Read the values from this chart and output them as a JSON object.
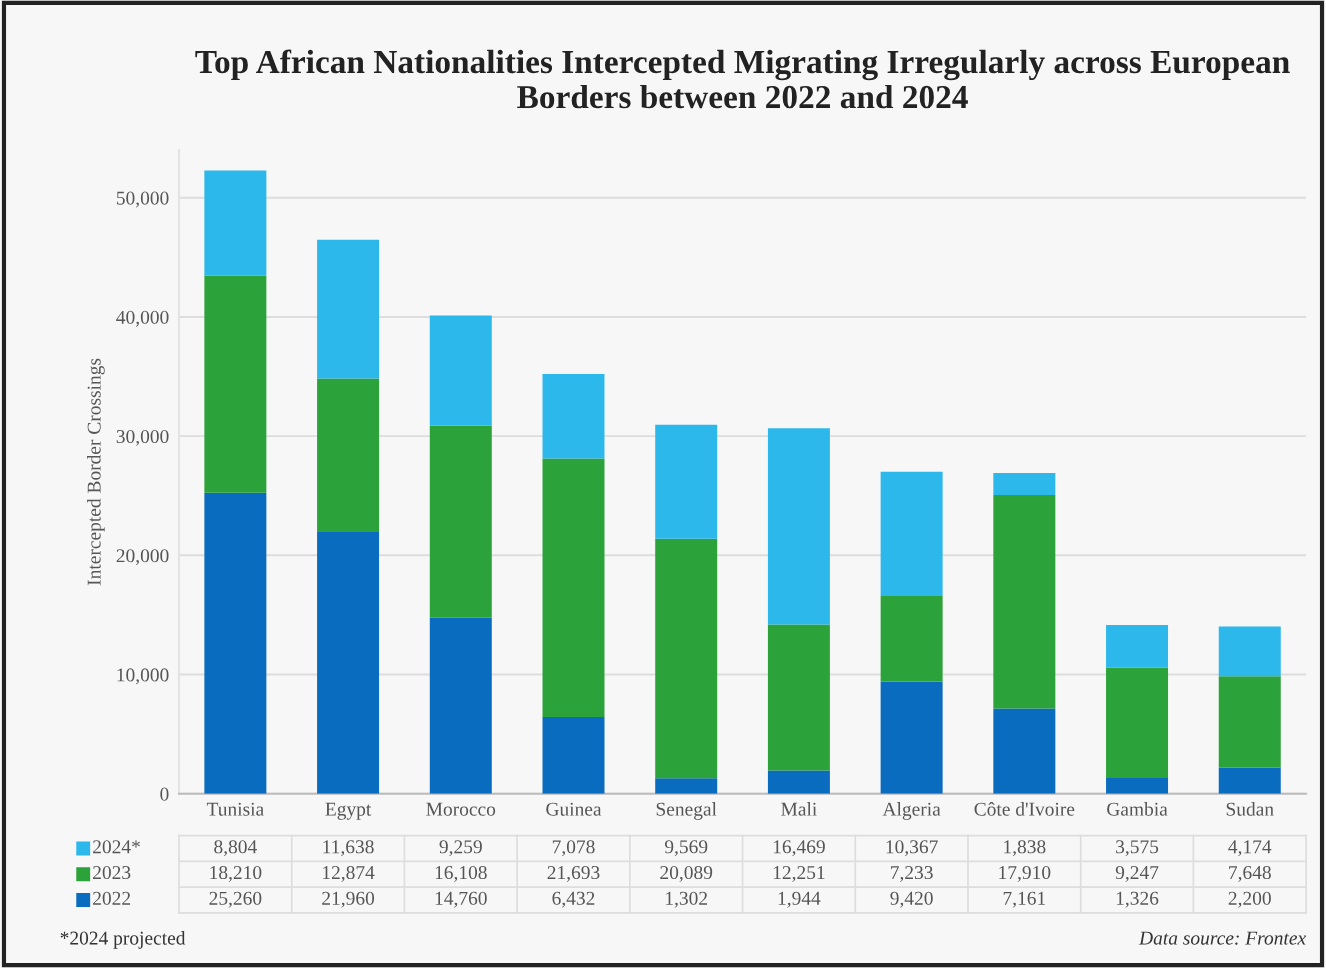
{
  "chart_data": {
    "type": "bar",
    "stacked": true,
    "title": "Top African Nationalities Intercepted Migrating Irregularly across European Borders between 2022 and 2024",
    "ylabel": "Intercepted Border Crossings",
    "categories": [
      "Tunisia",
      "Egypt",
      "Morocco",
      "Guinea",
      "Senegal",
      "Mali",
      "Algeria",
      "Côte d'Ivoire",
      "Gambia",
      "Sudan"
    ],
    "series": [
      {
        "name": "2022",
        "color": "#0a6cbf",
        "values": [
          25260,
          21960,
          14760,
          6432,
          1302,
          1944,
          9420,
          7161,
          1326,
          2200
        ],
        "value_labels": [
          "25,260",
          "21,960",
          "14,760",
          "6,432",
          "1,302",
          "1,944",
          "9,420",
          "7,161",
          "1,326",
          "2,200"
        ]
      },
      {
        "name": "2023",
        "color": "#2ca33a",
        "values": [
          18210,
          12874,
          16108,
          21693,
          20089,
          12251,
          7233,
          17910,
          9247,
          7648
        ],
        "value_labels": [
          "18,210",
          "12,874",
          "16,108",
          "21,693",
          "20,089",
          "12,251",
          "7,233",
          "17,910",
          "9,247",
          "7,648"
        ]
      },
      {
        "name": "2024*",
        "color": "#2db8ec",
        "values": [
          8804,
          11638,
          9259,
          7078,
          9569,
          16469,
          10367,
          1838,
          3575,
          4174
        ],
        "value_labels": [
          "8,804",
          "11,638",
          "9,259",
          "7,078",
          "9,569",
          "16,469",
          "10,367",
          "1,838",
          "3,575",
          "4,174"
        ]
      }
    ],
    "ylim": [
      0,
      54000
    ],
    "yticks": [
      {
        "value": 0,
        "label": "0"
      },
      {
        "value": 10000,
        "label": "10,000"
      },
      {
        "value": 20000,
        "label": "20,000"
      },
      {
        "value": 30000,
        "label": "30,000"
      },
      {
        "value": 40000,
        "label": "40,000"
      },
      {
        "value": 50000,
        "label": "50,000"
      }
    ],
    "grid": "y",
    "legend": "bottom left",
    "annotations": [
      "*2024 projected",
      "Data source: Frontex"
    ]
  }
}
